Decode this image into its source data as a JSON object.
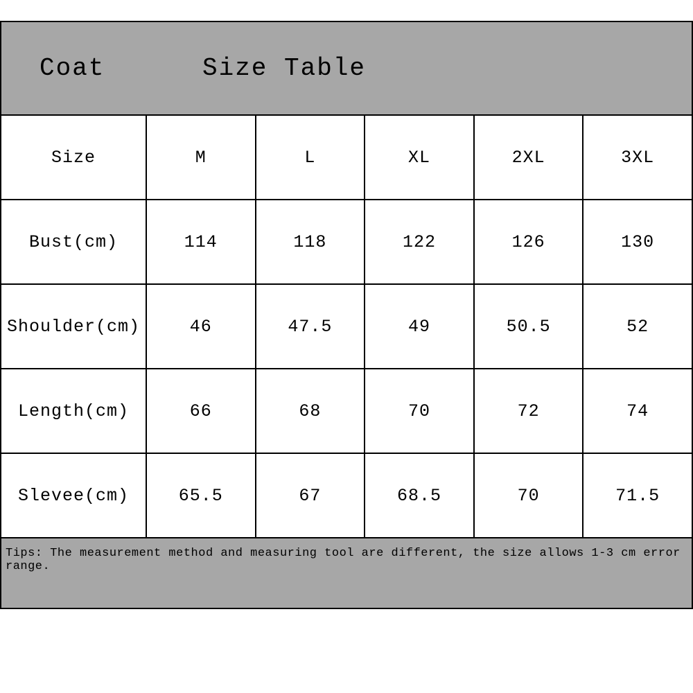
{
  "header": {
    "left": "Coat",
    "right": "Size Table",
    "background": "#a7a7a7"
  },
  "table": {
    "columns": [
      "Size",
      "M",
      "L",
      "XL",
      "2XL",
      "3XL"
    ],
    "rows": [
      [
        "Bust(cm)",
        "114",
        "118",
        "122",
        "126",
        "130"
      ],
      [
        "Shoulder(cm)",
        "46",
        "47.5",
        "49",
        "50.5",
        "52"
      ],
      [
        "Length(cm)",
        "66",
        "68",
        "70",
        "72",
        "74"
      ],
      [
        "Slevee(cm)",
        "65.5",
        "67",
        "68.5",
        "70",
        "71.5"
      ]
    ],
    "border_color": "#000000",
    "cell_background": "#ffffff",
    "font_color": "#000000"
  },
  "footer": {
    "text": "Tips: The measurement method and measuring tool are different, the size allows 1-3 cm error range.",
    "background": "#a7a7a7"
  }
}
